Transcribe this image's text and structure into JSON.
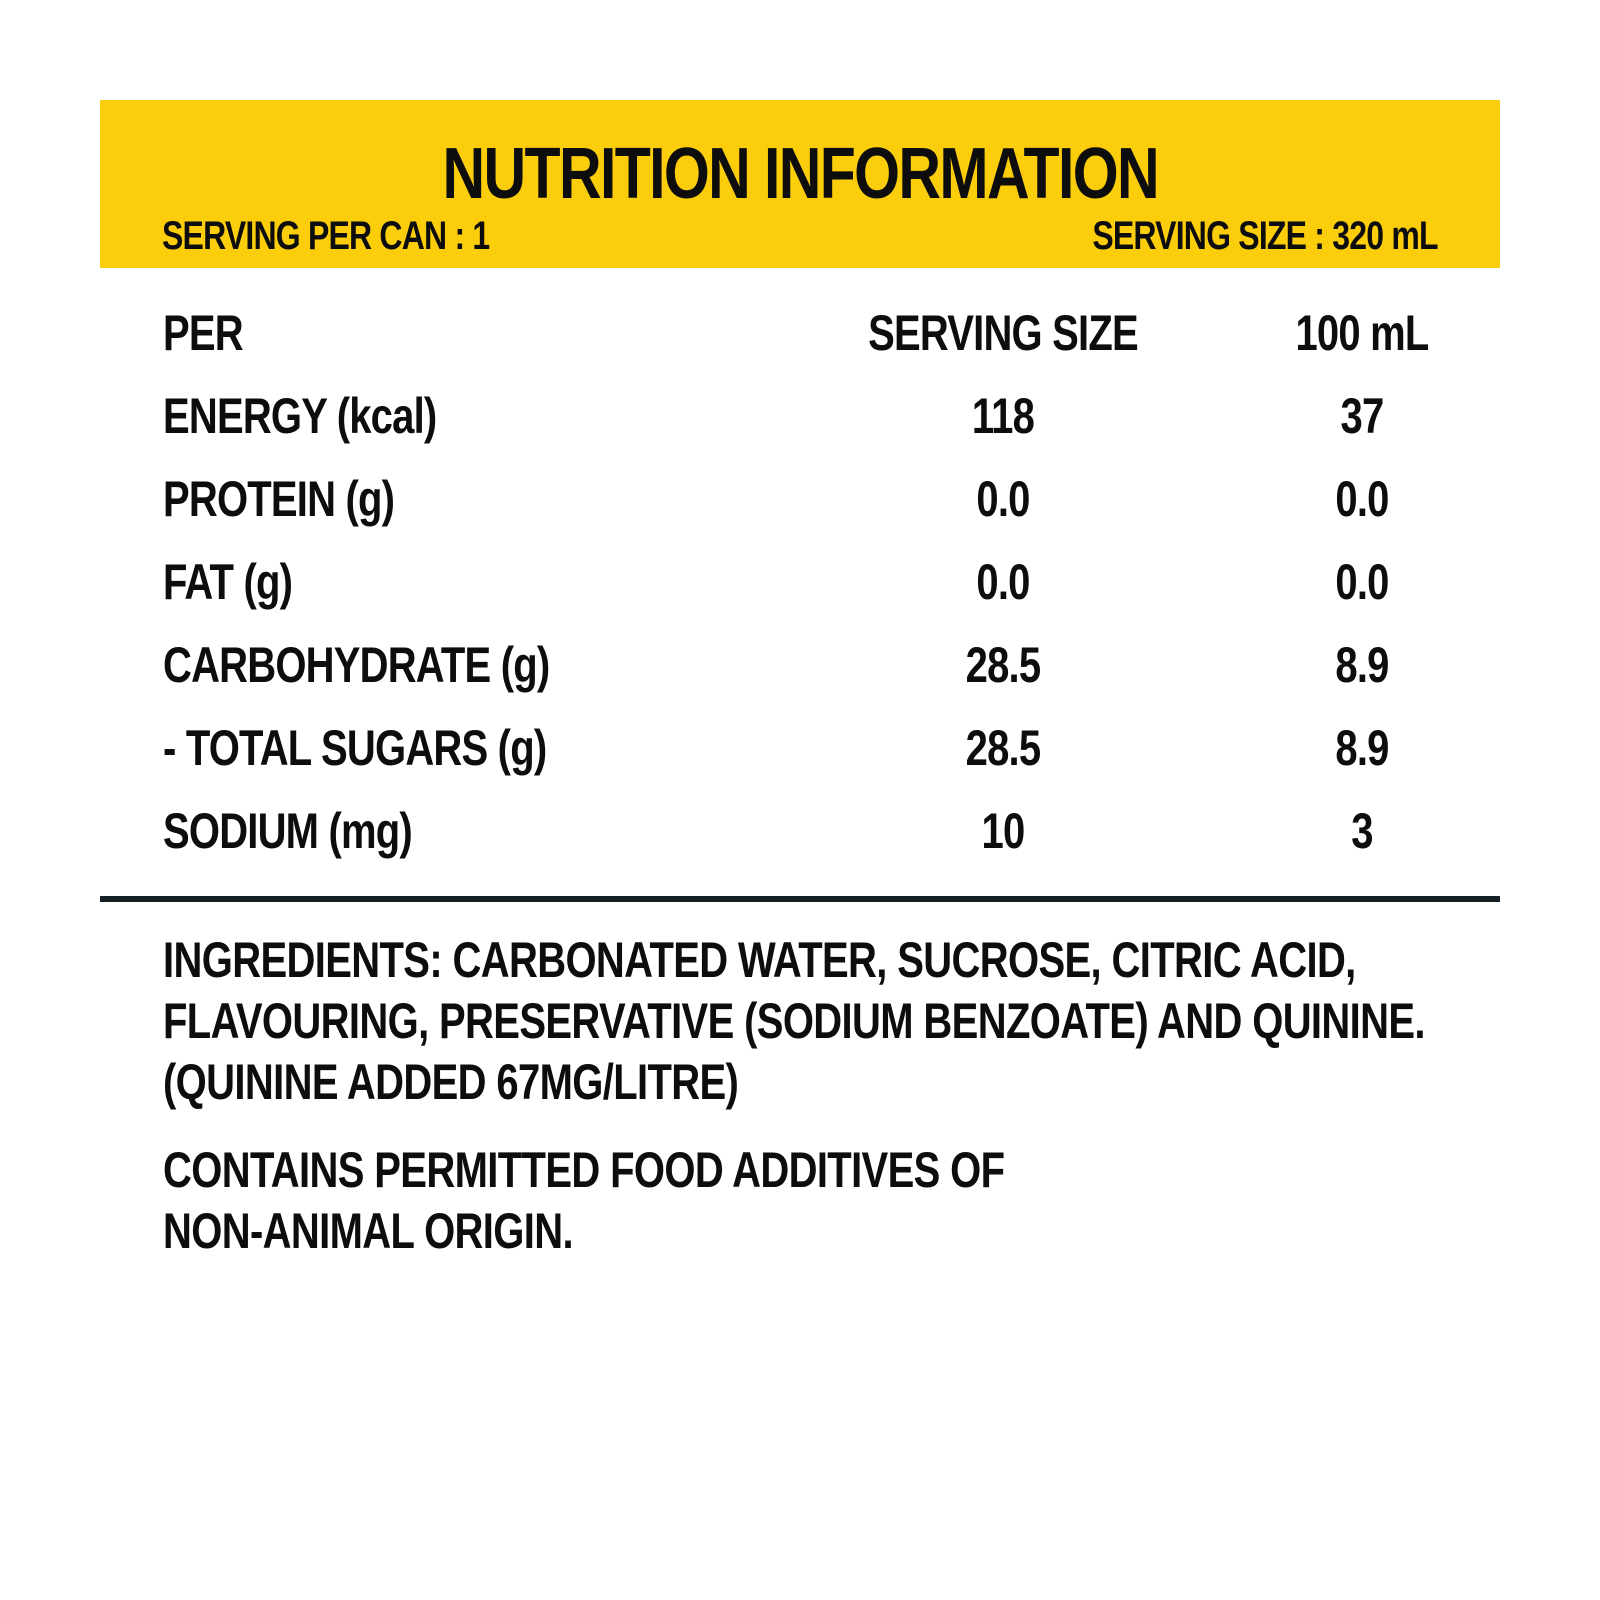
{
  "header": {
    "title": "NUTRITION INFORMATION",
    "serving_per_can": "SERVING PER CAN : 1",
    "serving_size": "SERVING SIZE : 320 mL",
    "banner_color": "#fbcd0b"
  },
  "table": {
    "columns": [
      "PER",
      "SERVING SIZE",
      "100 mL"
    ],
    "rows": [
      {
        "nutrient": "ENERGY (kcal)",
        "per_serving": "118",
        "per_100ml": "37"
      },
      {
        "nutrient": "PROTEIN (g)",
        "per_serving": "0.0",
        "per_100ml": "0.0"
      },
      {
        "nutrient": "FAT (g)",
        "per_serving": "0.0",
        "per_100ml": "0.0"
      },
      {
        "nutrient": "CARBOHYDRATE (g)",
        "per_serving": "28.5",
        "per_100ml": "8.9"
      },
      {
        "nutrient": "- TOTAL SUGARS (g)",
        "per_serving": "28.5",
        "per_100ml": "8.9"
      },
      {
        "nutrient": "SODIUM (mg)",
        "per_serving": "10",
        "per_100ml": "3"
      }
    ]
  },
  "ingredients": {
    "lines": [
      "INGREDIENTS: CARBONATED WATER, SUCROSE, CITRIC ACID,",
      "FLAVOURING, PRESERVATIVE (SODIUM BENZOATE) AND QUININE.",
      "(QUININE ADDED 67MG/LITRE)"
    ]
  },
  "additives": {
    "lines": [
      "CONTAINS PERMITTED FOOD ADDITIVES OF",
      "NON-ANIMAL ORIGIN."
    ]
  }
}
